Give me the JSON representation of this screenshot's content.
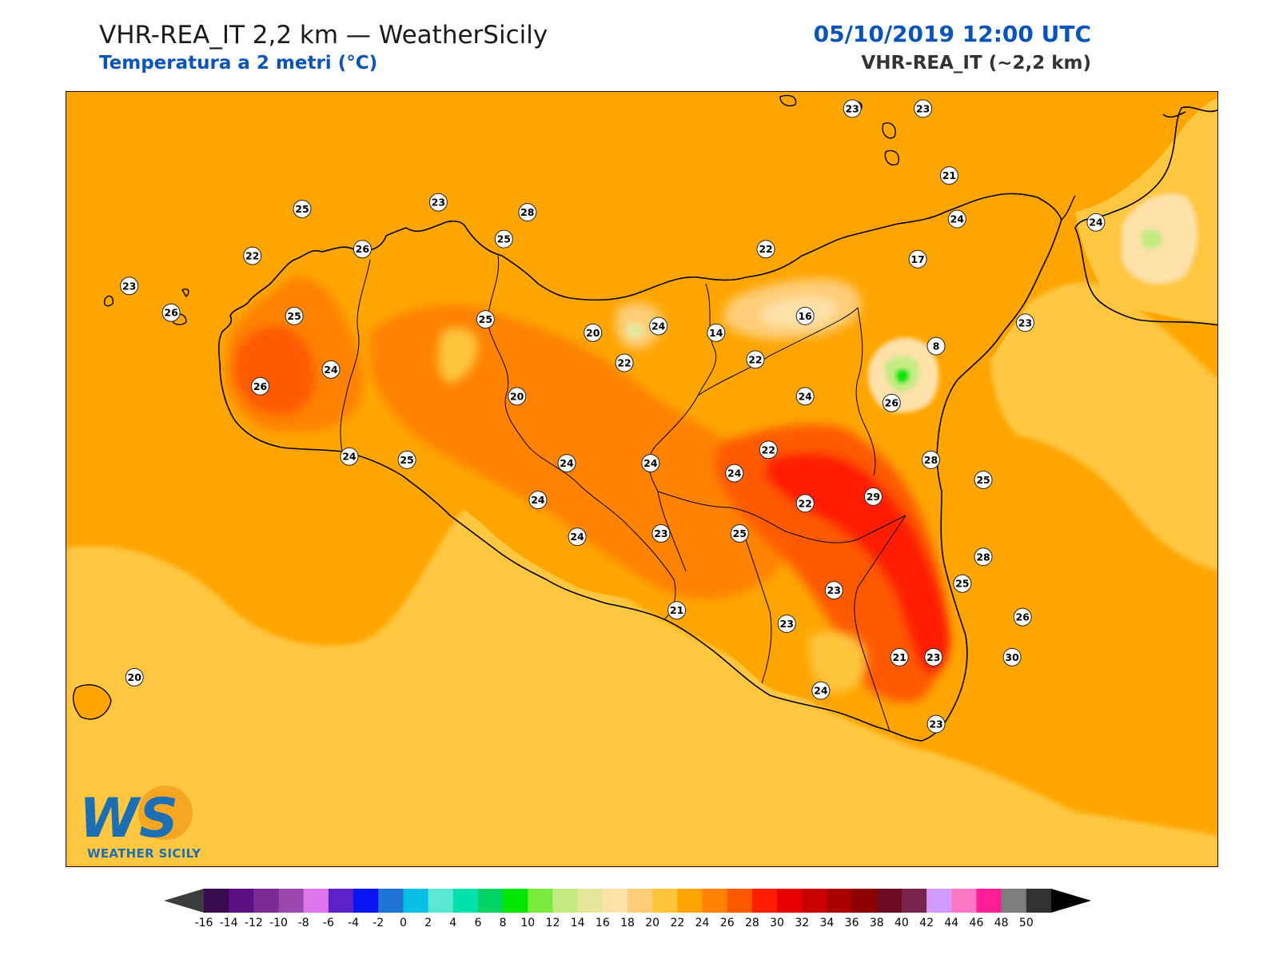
{
  "header": {
    "title": "VHR-REA_IT 2,2 km — WeatherSicily",
    "subtitle": "Temperatura a 2 metri (°C)",
    "datetime": "05/10/2019 12:00 UTC",
    "model": "VHR-REA_IT (~2,2 km)"
  },
  "colors": {
    "accent_blue": "#0a54b8",
    "sea": "#ffa500",
    "sea_south": "#ffc640",
    "coast": "#000000"
  },
  "logo": {
    "mark": "WS",
    "text": "WEATHER SICILY"
  },
  "station_labels": [
    {
      "value": "23",
      "lon": 14.7,
      "lat": 38.42
    },
    {
      "value": "23",
      "lon": 14.97,
      "lat": 38.42
    },
    {
      "value": "21",
      "lon": 15.07,
      "lat": 38.22
    },
    {
      "value": "25",
      "lon": 12.6,
      "lat": 38.12
    },
    {
      "value": "23",
      "lon": 13.12,
      "lat": 38.14
    },
    {
      "value": "28",
      "lon": 13.46,
      "lat": 38.11
    },
    {
      "value": "24",
      "lon": 15.1,
      "lat": 38.09
    },
    {
      "value": "24",
      "lon": 15.63,
      "lat": 38.08
    },
    {
      "value": "22",
      "lon": 12.41,
      "lat": 37.98
    },
    {
      "value": "26",
      "lon": 12.83,
      "lat": 38.0
    },
    {
      "value": "25",
      "lon": 13.37,
      "lat": 38.03
    },
    {
      "value": "22",
      "lon": 14.37,
      "lat": 38.0
    },
    {
      "value": "17",
      "lon": 14.95,
      "lat": 37.97
    },
    {
      "value": "23",
      "lon": 11.94,
      "lat": 37.89
    },
    {
      "value": "26",
      "lon": 12.1,
      "lat": 37.81
    },
    {
      "value": "25",
      "lon": 12.57,
      "lat": 37.8
    },
    {
      "value": "25",
      "lon": 13.3,
      "lat": 37.79
    },
    {
      "value": "16",
      "lon": 14.52,
      "lat": 37.8
    },
    {
      "value": "20",
      "lon": 13.71,
      "lat": 37.75
    },
    {
      "value": "24",
      "lon": 13.96,
      "lat": 37.77
    },
    {
      "value": "14",
      "lon": 14.18,
      "lat": 37.75
    },
    {
      "value": "23",
      "lon": 15.36,
      "lat": 37.78
    },
    {
      "value": "24",
      "lon": 12.71,
      "lat": 37.64
    },
    {
      "value": "22",
      "lon": 13.83,
      "lat": 37.66
    },
    {
      "value": "22",
      "lon": 14.33,
      "lat": 37.67
    },
    {
      "value": "8",
      "lon": 15.02,
      "lat": 37.71
    },
    {
      "value": "26",
      "lon": 12.44,
      "lat": 37.59
    },
    {
      "value": "20",
      "lon": 13.42,
      "lat": 37.56
    },
    {
      "value": "24",
      "lon": 14.52,
      "lat": 37.56
    },
    {
      "value": "26",
      "lon": 14.85,
      "lat": 37.54
    },
    {
      "value": "24",
      "lon": 12.78,
      "lat": 37.38
    },
    {
      "value": "25",
      "lon": 13.0,
      "lat": 37.37
    },
    {
      "value": "24",
      "lon": 13.61,
      "lat": 37.36
    },
    {
      "value": "24",
      "lon": 13.93,
      "lat": 37.36
    },
    {
      "value": "22",
      "lon": 14.38,
      "lat": 37.4
    },
    {
      "value": "28",
      "lon": 15.0,
      "lat": 37.37
    },
    {
      "value": "24",
      "lon": 14.25,
      "lat": 37.33
    },
    {
      "value": "25",
      "lon": 15.2,
      "lat": 37.31
    },
    {
      "value": "29",
      "lon": 14.78,
      "lat": 37.26
    },
    {
      "value": "24",
      "lon": 13.5,
      "lat": 37.25
    },
    {
      "value": "22",
      "lon": 14.52,
      "lat": 37.24
    },
    {
      "value": "24",
      "lon": 13.65,
      "lat": 37.14
    },
    {
      "value": "23",
      "lon": 13.97,
      "lat": 37.15
    },
    {
      "value": "25",
      "lon": 14.27,
      "lat": 37.15
    },
    {
      "value": "28",
      "lon": 15.2,
      "lat": 37.08
    },
    {
      "value": "25",
      "lon": 15.12,
      "lat": 37.0
    },
    {
      "value": "23",
      "lon": 14.63,
      "lat": 36.98
    },
    {
      "value": "21",
      "lon": 14.03,
      "lat": 36.92
    },
    {
      "value": "23",
      "lon": 14.45,
      "lat": 36.88
    },
    {
      "value": "26",
      "lon": 15.35,
      "lat": 36.9
    },
    {
      "value": "21",
      "lon": 14.88,
      "lat": 36.78
    },
    {
      "value": "23",
      "lon": 15.01,
      "lat": 36.78
    },
    {
      "value": "30",
      "lon": 15.31,
      "lat": 36.78
    },
    {
      "value": "24",
      "lon": 14.58,
      "lat": 36.68
    },
    {
      "value": "23",
      "lon": 15.02,
      "lat": 36.58
    },
    {
      "value": "20",
      "lon": 11.96,
      "lat": 36.72
    }
  ],
  "colorbar": {
    "ticks": [
      "-16",
      "-14",
      "-12",
      "-10",
      "-8",
      "-6",
      "-4",
      "-2",
      "0",
      "2",
      "4",
      "6",
      "8",
      "10",
      "12",
      "14",
      "16",
      "18",
      "20",
      "22",
      "24",
      "26",
      "28",
      "30",
      "32",
      "34",
      "36",
      "38",
      "40",
      "42",
      "44",
      "46",
      "48",
      "50"
    ],
    "colors": [
      "#3a0a4f",
      "#5c0f80",
      "#7b2a96",
      "#9a47b0",
      "#e076ee",
      "#5a22c8",
      "#0a14f0",
      "#1e74d2",
      "#08c0e6",
      "#5ae8d2",
      "#00e0aa",
      "#00d264",
      "#00e600",
      "#78eb3c",
      "#c3eb82",
      "#e6e69b",
      "#ffe1aa",
      "#ffcd78",
      "#ffc53c",
      "#ffa500",
      "#ff8200",
      "#ff5a00",
      "#ff1e00",
      "#e60000",
      "#c80000",
      "#aa0000",
      "#8c0000",
      "#6e0a23",
      "#78234b",
      "#d29bff",
      "#ff78c8",
      "#ff1e96",
      "#7d7d7d",
      "#323232"
    ],
    "under_color": "#3c3c3c",
    "over_color": "#000000",
    "unit": "°C"
  }
}
